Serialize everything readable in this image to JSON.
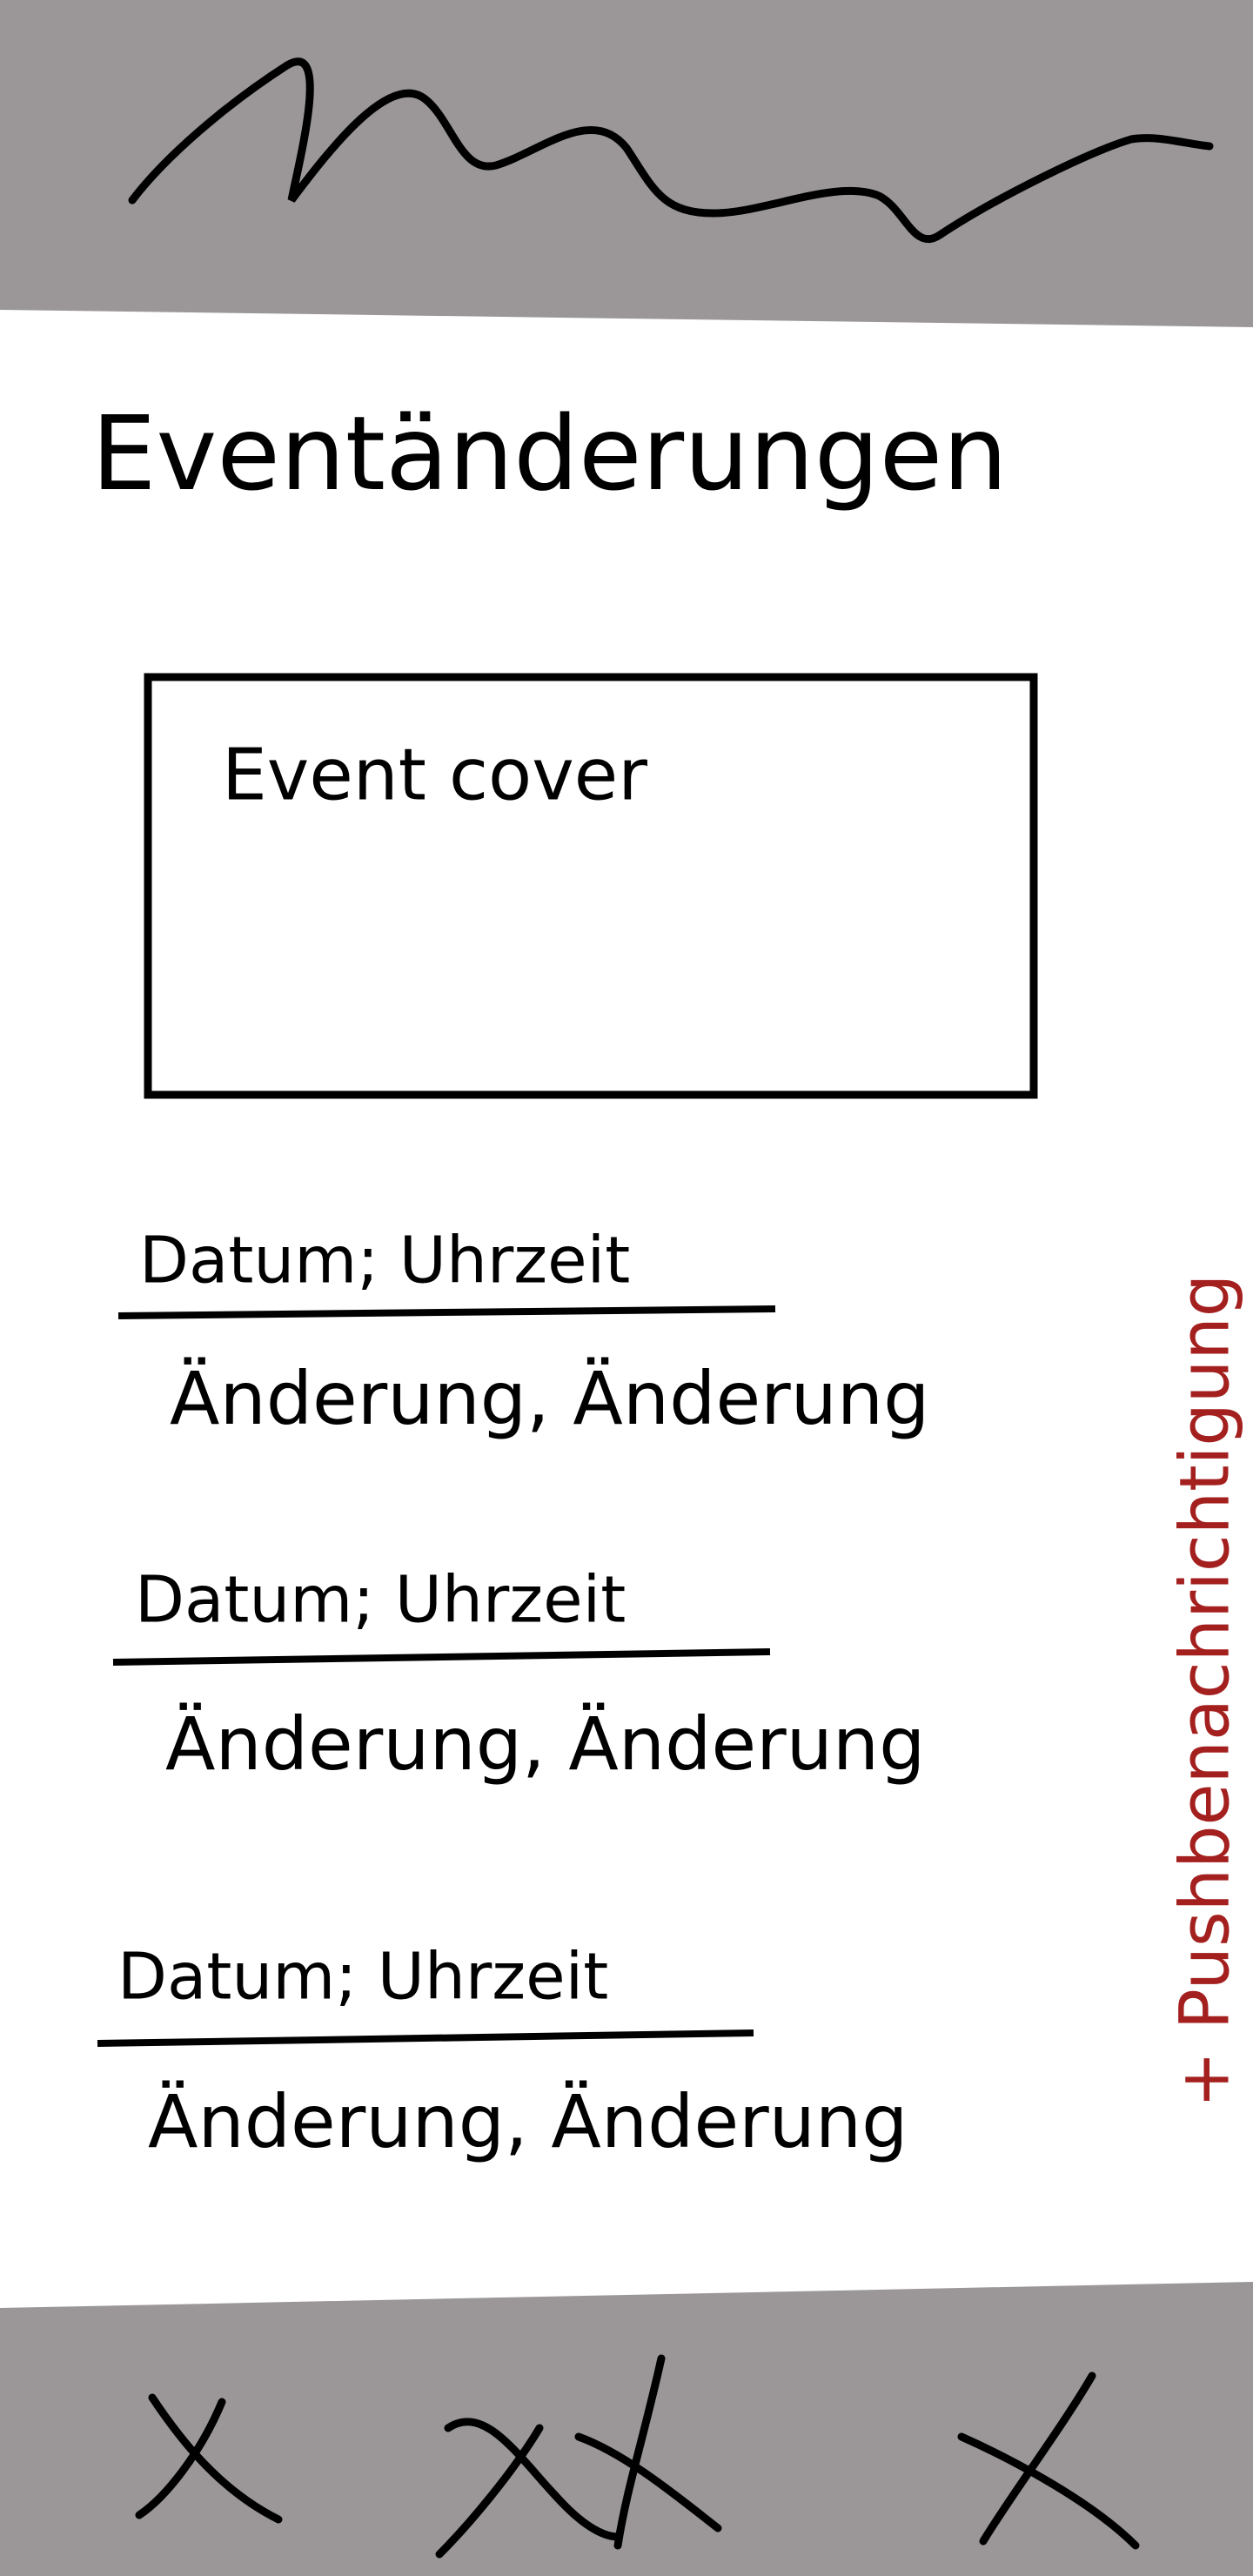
{
  "header": {
    "title": "Eventänderungen"
  },
  "cover": {
    "label": "Event cover"
  },
  "changes": [
    {
      "datetime": "Datum; Uhrzeit",
      "change": "Änderung, Änderung"
    },
    {
      "datetime": "Datum; Uhrzeit",
      "change": "Änderung, Änderung"
    },
    {
      "datetime": "Datum; Uhrzeit",
      "change": "Änderung, Änderung"
    }
  ],
  "note": "+ Pushbenachrichtigung"
}
